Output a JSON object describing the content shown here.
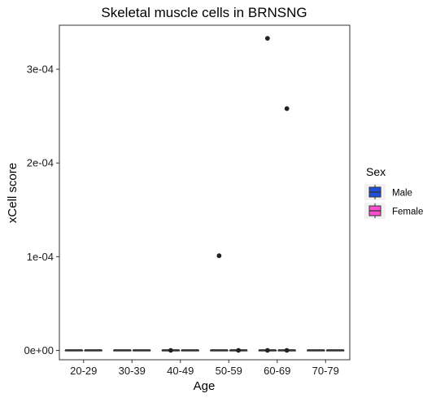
{
  "chart_data": {
    "type": "boxplot",
    "title": "Skeletal muscle cells in BRNSNG",
    "xlabel": "Age",
    "ylabel": "xCell score",
    "categories": [
      "20-29",
      "30-39",
      "40-49",
      "50-59",
      "60-69",
      "70-79"
    ],
    "ylim": [
      -1e-05,
      0.000347
    ],
    "y_ticks": [
      {
        "value": 0,
        "label": "0e+00"
      },
      {
        "value": 0.0001,
        "label": "1e-04"
      },
      {
        "value": 0.0002,
        "label": "2e-04"
      },
      {
        "value": 0.0003,
        "label": "3e-04"
      }
    ],
    "grid": false,
    "legend": {
      "title": "Sex",
      "placement": "right",
      "entries": [
        {
          "name": "Male",
          "color": "#1e4fd8"
        },
        {
          "name": "Female",
          "color": "#ff4fce"
        }
      ]
    },
    "series": [
      {
        "name": "Male",
        "color": "#1e4fd8",
        "boxes": [
          {
            "category": "20-29",
            "min": 0,
            "q1": 0,
            "median": 0,
            "q3": 0,
            "max": 0,
            "outliers": []
          },
          {
            "category": "30-39",
            "min": 0,
            "q1": 0,
            "median": 0,
            "q3": 0,
            "max": 0,
            "outliers": []
          },
          {
            "category": "40-49",
            "min": 0,
            "q1": 0,
            "median": 0,
            "q3": 0,
            "max": 0,
            "outliers": [
              0
            ]
          },
          {
            "category": "50-59",
            "min": 0,
            "q1": 0,
            "median": 0,
            "q3": 0,
            "max": 0,
            "outliers": [
              0.000101
            ]
          },
          {
            "category": "60-69",
            "min": 0,
            "q1": 0,
            "median": 0,
            "q3": 0,
            "max": 0,
            "outliers": [
              0.000333,
              0
            ]
          },
          {
            "category": "70-79",
            "min": 0,
            "q1": 0,
            "median": 0,
            "q3": 0,
            "max": 0,
            "outliers": []
          }
        ]
      },
      {
        "name": "Female",
        "color": "#ff4fce",
        "boxes": [
          {
            "category": "20-29",
            "min": 0,
            "q1": 0,
            "median": 0,
            "q3": 0,
            "max": 0,
            "outliers": []
          },
          {
            "category": "30-39",
            "min": 0,
            "q1": 0,
            "median": 0,
            "q3": 0,
            "max": 0,
            "outliers": []
          },
          {
            "category": "40-49",
            "min": 0,
            "q1": 0,
            "median": 0,
            "q3": 0,
            "max": 0,
            "outliers": []
          },
          {
            "category": "50-59",
            "min": 0,
            "q1": 0,
            "median": 0,
            "q3": 0,
            "max": 0,
            "outliers": [
              0
            ]
          },
          {
            "category": "60-69",
            "min": 0,
            "q1": 0,
            "median": 0,
            "q3": 0,
            "max": 0,
            "outliers": [
              0.000258,
              0
            ]
          },
          {
            "category": "70-79",
            "min": 0,
            "q1": 0,
            "median": 0,
            "q3": 0,
            "max": 0,
            "outliers": []
          }
        ]
      }
    ]
  }
}
